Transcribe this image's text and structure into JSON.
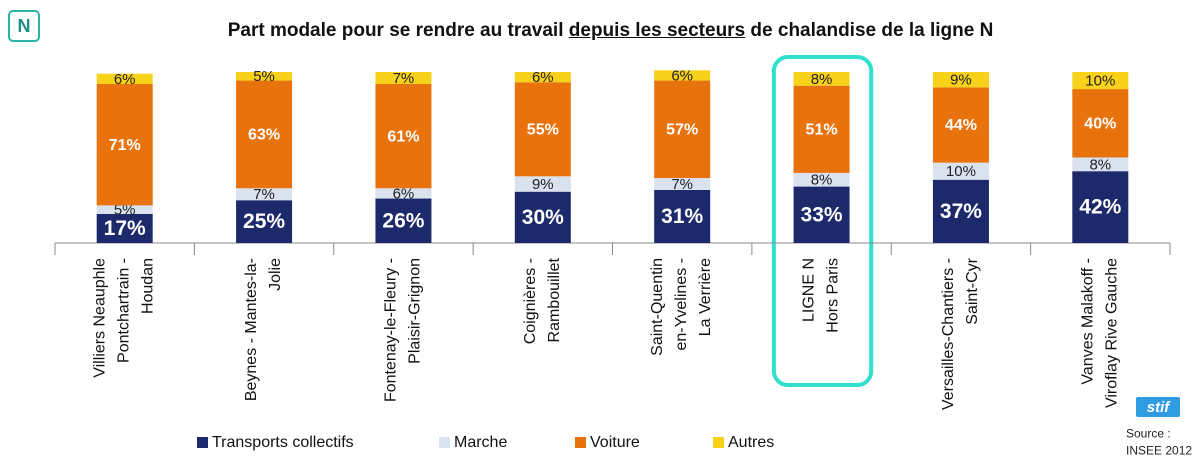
{
  "chart_data": {
    "type": "stacked_bar",
    "badge": "N",
    "title": {
      "before": "Part modale pour se rendre au travail ",
      "underlined": "depuis les secteurs",
      "after": " de chalandise de la ligne N"
    },
    "categories": [
      "Villiers Neauphle\nPontchartrain -\nHoudan",
      "Beynes - Mantes-la-\nJolie",
      "Fontenay-le-Fleury -\nPlaisir-Grignon",
      "Coignières -\nRambouillet",
      "Saint-Quentin\nen-Yvelines -\nLa Verrière",
      "LIGNE N\nHors Paris",
      "Versailles-Chantiers -\nSaint-Cyr",
      "Vanves Malakoff -\nViroflay Rive Gauche"
    ],
    "series": [
      {
        "name": "Transports collectifs",
        "color": "#1c2a6b",
        "values": [
          17,
          25,
          26,
          30,
          31,
          33,
          37,
          42
        ],
        "value_labels": [
          "17%",
          "25%",
          "26%",
          "30%",
          "31%",
          "33%",
          "37%",
          "42%"
        ]
      },
      {
        "name": "Marche",
        "color": "#dae2f0",
        "values": [
          5,
          7,
          6,
          9,
          7,
          8,
          10,
          8
        ],
        "value_labels": [
          "5%",
          "7%",
          "6%",
          "9%",
          "7%",
          "8%",
          "10%",
          "8%"
        ]
      },
      {
        "name": "Voiture",
        "color": "#e8720c",
        "values": [
          71,
          63,
          61,
          55,
          57,
          51,
          44,
          40
        ],
        "value_labels": [
          "71%",
          "63%",
          "61%",
          "55%",
          "57%",
          "51%",
          "44%",
          "40%"
        ]
      },
      {
        "name": "Autres",
        "color": "#f8d11b",
        "values": [
          6,
          5,
          7,
          6,
          6,
          8,
          9,
          10
        ],
        "value_labels": [
          "6%",
          "5%",
          "7%",
          "6%",
          "6%",
          "8%",
          "9%",
          "10%"
        ]
      }
    ],
    "ylim": [
      0,
      100
    ],
    "highlight": 5,
    "logo": "stif",
    "source": "Source :\nINSEE 2012"
  }
}
